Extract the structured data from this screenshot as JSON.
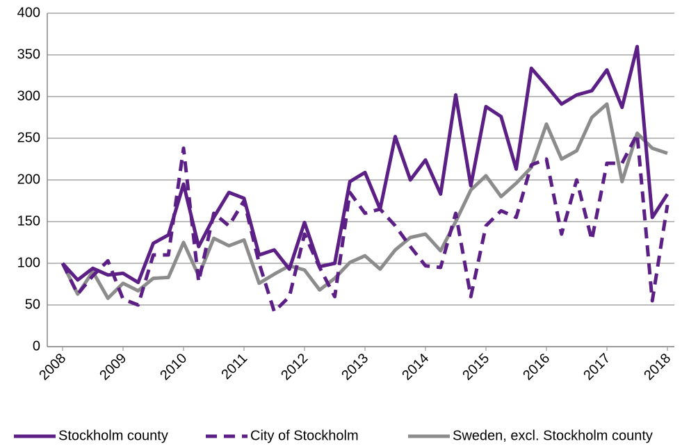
{
  "chart_data": {
    "type": "line",
    "categories": [
      "2008",
      null,
      null,
      null,
      "2009",
      null,
      null,
      null,
      "2010",
      null,
      null,
      null,
      "2011",
      null,
      null,
      null,
      "2012",
      null,
      null,
      null,
      "2013",
      null,
      null,
      null,
      "2014",
      null,
      null,
      null,
      "2015",
      null,
      null,
      null,
      "2016",
      null,
      null,
      null,
      "2017",
      null,
      null,
      null,
      "2018"
    ],
    "series": [
      {
        "name": "Stockholm county",
        "color": "#5b1f86",
        "dash": "solid",
        "values": [
          100,
          80,
          94,
          86,
          88,
          77,
          124,
          134,
          195,
          120,
          155,
          185,
          178,
          110,
          116,
          93,
          149,
          96,
          100,
          198,
          209,
          165,
          252,
          200,
          224,
          183,
          302,
          193,
          288,
          276,
          213,
          334,
          313,
          291,
          302,
          307,
          332,
          287,
          360,
          155,
          183
        ]
      },
      {
        "name": "City of Stockholm",
        "color": "#5b1f86",
        "dash": "dashed",
        "values": [
          100,
          63,
          85,
          103,
          57,
          50,
          110,
          110,
          238,
          78,
          160,
          145,
          175,
          100,
          42,
          60,
          135,
          95,
          60,
          185,
          160,
          165,
          145,
          120,
          97,
          95,
          160,
          60,
          145,
          163,
          155,
          218,
          225,
          135,
          200,
          128,
          220,
          220,
          255,
          55,
          170
        ]
      },
      {
        "name": "Sweden, excl. Stockholm county",
        "color": "#8c8c8c",
        "dash": "solid",
        "values": [
          100,
          63,
          90,
          58,
          76,
          67,
          82,
          83,
          125,
          85,
          130,
          121,
          128,
          76,
          87,
          97,
          92,
          68,
          82,
          101,
          109,
          93,
          116,
          131,
          135,
          115,
          150,
          188,
          205,
          180,
          196,
          215,
          267,
          225,
          235,
          275,
          291,
          198,
          256,
          238,
          232
        ]
      }
    ],
    "ylim": [
      0,
      400
    ],
    "yticks": [
      0,
      50,
      100,
      150,
      200,
      250,
      300,
      350,
      400
    ],
    "grid": true,
    "legend": "bottom"
  }
}
